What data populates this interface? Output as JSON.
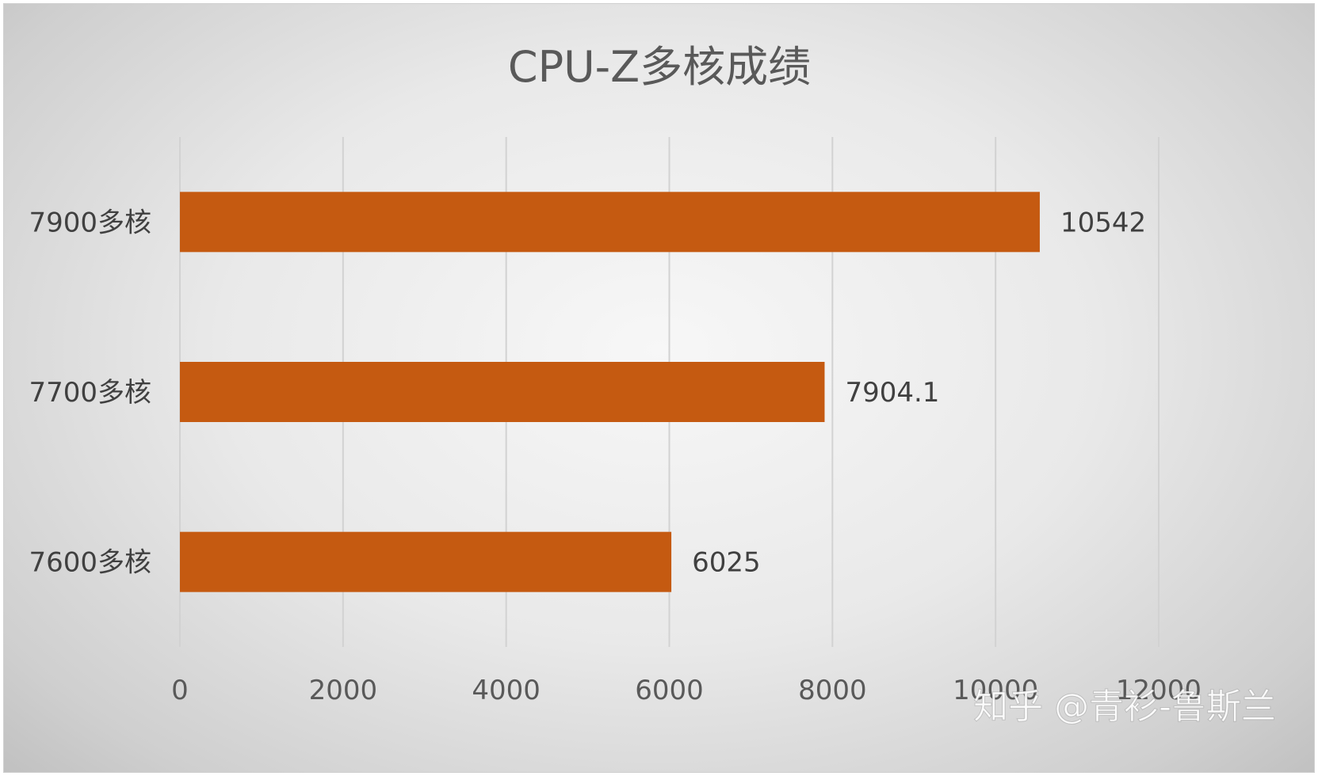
{
  "watermark": "知乎 @青衫-鲁斯兰",
  "chart_data": {
    "type": "bar",
    "orientation": "horizontal",
    "title": "CPU-Z多核成绩",
    "categories": [
      "7900多核",
      "7700多核",
      "7600多核"
    ],
    "values": [
      10542,
      7904.1,
      6025
    ],
    "value_labels": [
      "10542",
      "7904.1",
      "6025"
    ],
    "xlim": [
      0,
      12000
    ],
    "x_ticks": [
      0,
      2000,
      4000,
      6000,
      8000,
      10000,
      12000
    ],
    "x_tick_labels": [
      "0",
      "2000",
      "4000",
      "6000",
      "8000",
      "10000",
      "12000"
    ],
    "xlabel": "",
    "ylabel": "",
    "grid": "vertical",
    "legend": "none",
    "bar_color": "#C55A11"
  }
}
